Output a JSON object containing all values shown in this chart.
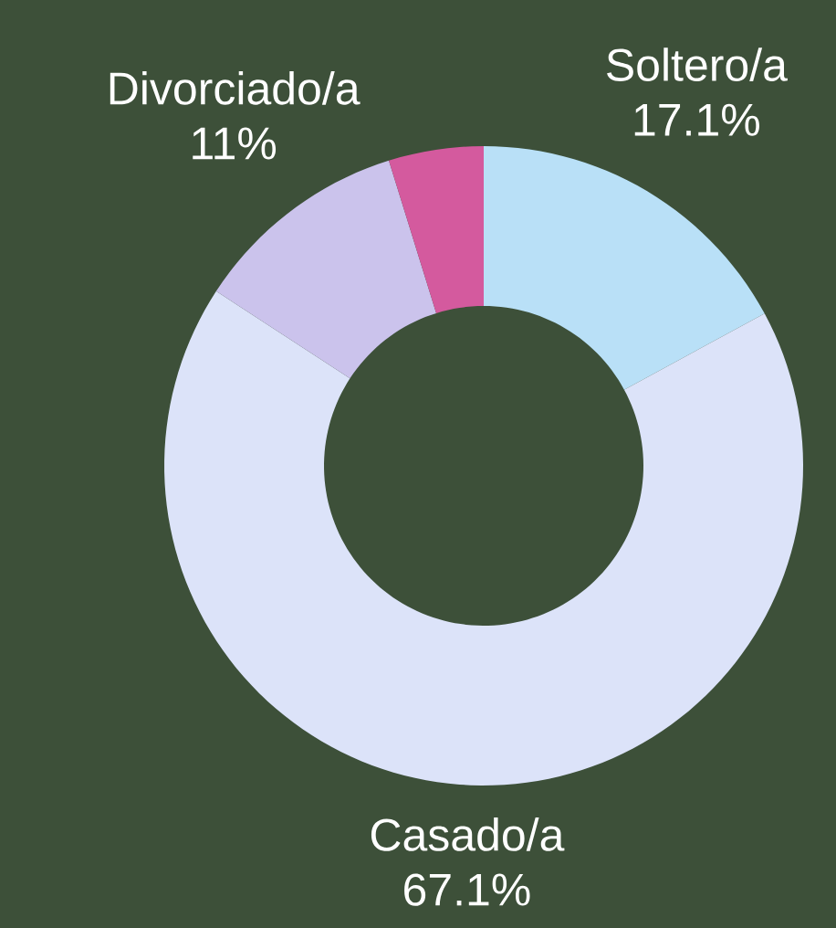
{
  "chart_data": {
    "type": "donut",
    "categories": [
      "Soltero/a",
      "Casado/a",
      "Divorciado/a",
      null
    ],
    "values": [
      17.1,
      67.1,
      11,
      4.8
    ],
    "colors": [
      "#b9e0f7",
      "#dce3f9",
      "#cbc3ec",
      "#d45a9e"
    ],
    "value_labels": [
      "17.1%",
      "67.1%",
      "11%",
      null
    ]
  }
}
